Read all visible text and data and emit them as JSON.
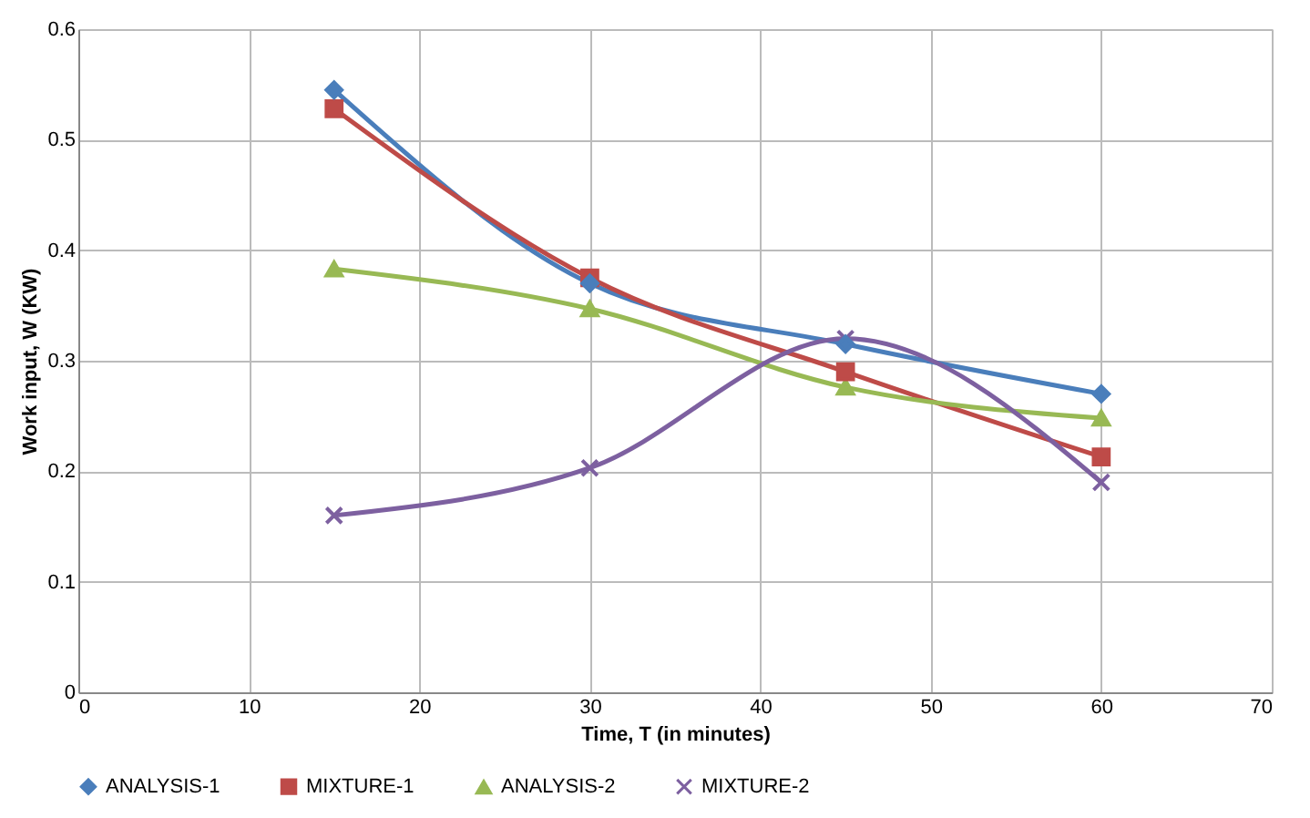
{
  "chart_data": {
    "type": "line",
    "xlabel": "Time, T (in minutes)",
    "ylabel": "Work input, W (KW)",
    "x": [
      15,
      30,
      45,
      60
    ],
    "series": [
      {
        "name": "ANALYSIS-1",
        "color": "#4a7ebb",
        "marker": "diamond",
        "values": [
          0.545,
          0.37,
          0.315,
          0.27
        ]
      },
      {
        "name": "MIXTURE-1",
        "color": "#be4b48",
        "marker": "square",
        "values": [
          0.528,
          0.375,
          0.29,
          0.213
        ]
      },
      {
        "name": "ANALYSIS-2",
        "color": "#98b954",
        "marker": "triangle",
        "values": [
          0.383,
          0.347,
          0.276,
          0.248
        ]
      },
      {
        "name": "MIXTURE-2",
        "color": "#7d60a0",
        "marker": "cross",
        "values": [
          0.16,
          0.203,
          0.32,
          0.19
        ]
      }
    ],
    "xlim": [
      0,
      70
    ],
    "xticks": [
      0,
      10,
      20,
      30,
      40,
      50,
      60,
      70
    ],
    "ylim": [
      0,
      0.6
    ],
    "yticks": [
      0,
      0.1,
      0.2,
      0.3,
      0.4,
      0.5,
      0.6
    ],
    "grid": true,
    "legend": "bottom",
    "line_style": "solid"
  }
}
